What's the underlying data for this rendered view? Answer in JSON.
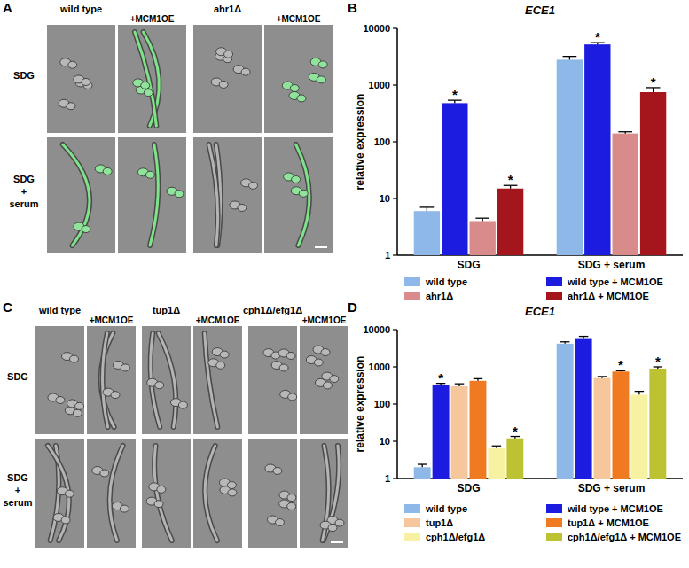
{
  "panel_labels": [
    "A",
    "B",
    "C",
    "D"
  ],
  "image_panels": [
    {
      "rows": [
        "SDG",
        "SDG + serum"
      ],
      "strains": [
        "wild type",
        "ahr1Δ"
      ],
      "overexpression": "+MCM1OE"
    },
    {
      "rows": [
        "SDG",
        "SDG + serum"
      ],
      "strains": [
        "wild type",
        "tup1Δ",
        "cph1Δ/efg1Δ"
      ],
      "overexpression": "+MCM1OE"
    }
  ],
  "chart_data": [
    {
      "type": "bar",
      "title": "ECE1",
      "y_label": "relative expression",
      "categories": [
        "SDG",
        "SDG + serum"
      ],
      "log": "y",
      "ylim": [
        1,
        10000
      ],
      "yticks": [
        1,
        10,
        100,
        1000,
        10000
      ],
      "legend": "bottom",
      "series": [
        {
          "name": "wild type",
          "color": "#8db8e8",
          "values": [
            6,
            2800
          ],
          "errors": [
            1,
            400
          ],
          "significance": [
            null,
            null
          ]
        },
        {
          "name": "wild type + MCM1OE",
          "color": "#1c1ce0",
          "values": [
            480,
            5200
          ],
          "errors": [
            60,
            400
          ],
          "significance": [
            "*",
            "*"
          ]
        },
        {
          "name": "ahr1Δ",
          "color": "#d98b8b",
          "values": [
            4,
            140
          ],
          "errors": [
            0.5,
            10
          ],
          "significance": [
            null,
            null
          ]
        },
        {
          "name": "ahr1Δ + MCM1OE",
          "color": "#a5161c",
          "values": [
            15,
            750
          ],
          "errors": [
            2,
            150
          ],
          "significance": [
            "*",
            "*"
          ]
        }
      ]
    },
    {
      "type": "bar",
      "title": "ECE1",
      "y_label": "relative expression",
      "categories": [
        "SDG",
        "SDG + serum"
      ],
      "log": "y",
      "ylim": [
        1,
        10000
      ],
      "yticks": [
        1,
        10,
        100,
        1000,
        10000
      ],
      "legend": "bottom",
      "series": [
        {
          "name": "wild type",
          "color": "#8db8e8",
          "values": [
            2,
            4200
          ],
          "errors": [
            0.4,
            500
          ],
          "significance": [
            null,
            null
          ]
        },
        {
          "name": "wild type + MCM1OE",
          "color": "#1c1ce0",
          "values": [
            320,
            5600
          ],
          "errors": [
            40,
            1000
          ],
          "significance": [
            "*",
            null
          ]
        },
        {
          "name": "tup1Δ",
          "color": "#f6c79c",
          "values": [
            300,
            500
          ],
          "errors": [
            50,
            50
          ],
          "significance": [
            null,
            null
          ]
        },
        {
          "name": "tup1Δ + MCM1OE",
          "color": "#f07a22",
          "values": [
            420,
            750
          ],
          "errors": [
            60,
            40
          ],
          "significance": [
            null,
            "*"
          ]
        },
        {
          "name": "cph1Δ/efg1Δ",
          "color": "#f7f2a2",
          "values": [
            6.5,
            180
          ],
          "errors": [
            1,
            40
          ],
          "significance": [
            null,
            null
          ]
        },
        {
          "name": "cph1Δ/efg1Δ + MCM1OE",
          "color": "#bcc232",
          "values": [
            12,
            900
          ],
          "errors": [
            1.5,
            100
          ],
          "significance": [
            "*",
            "*"
          ]
        }
      ]
    }
  ]
}
